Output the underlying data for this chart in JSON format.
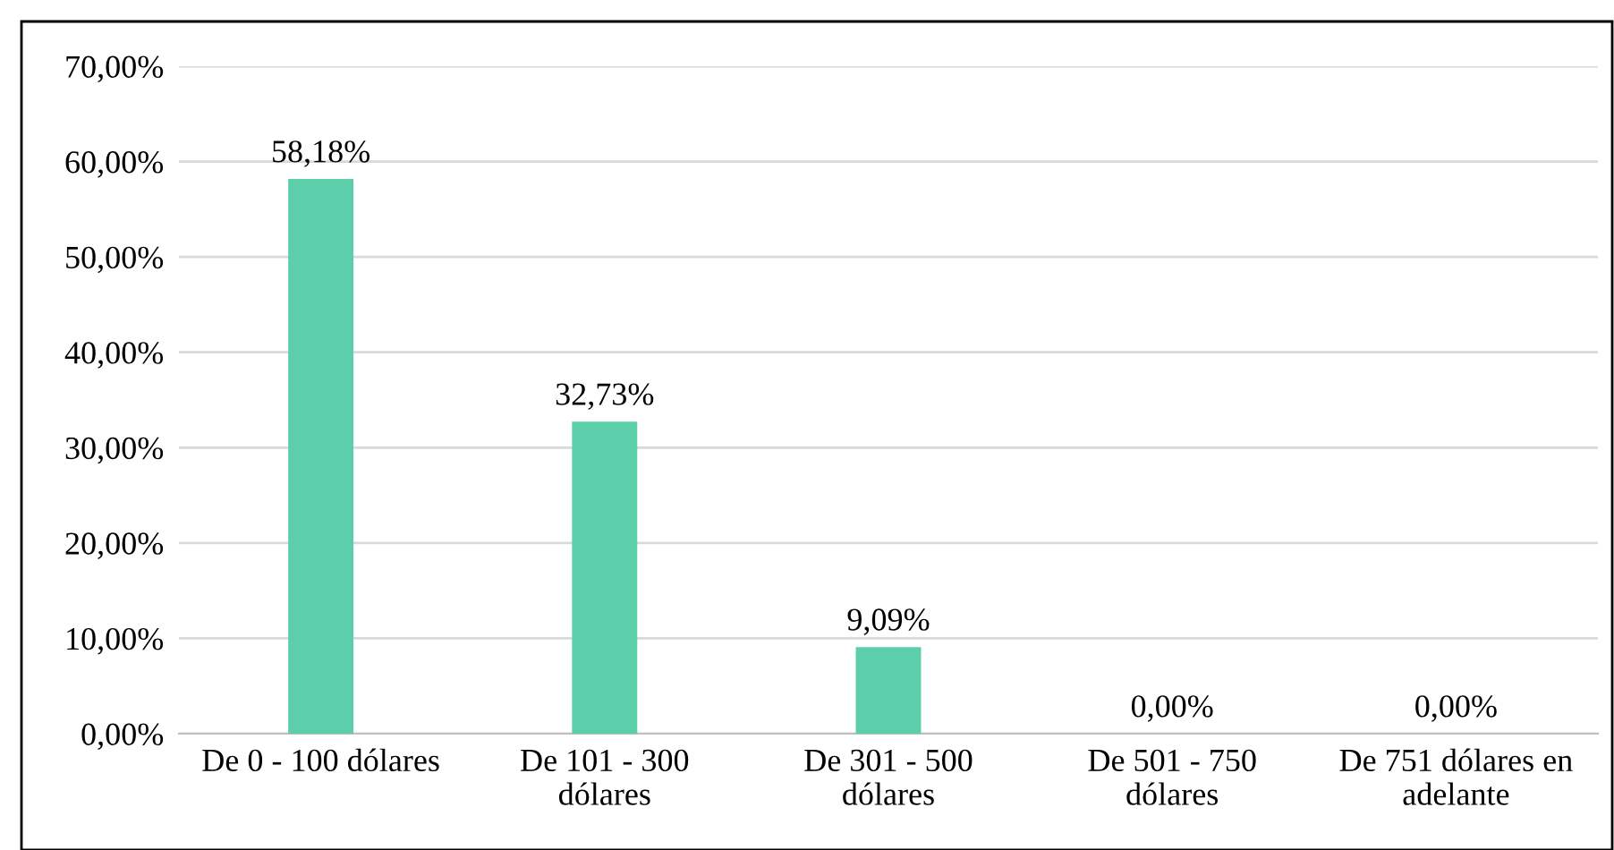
{
  "chart_data": {
    "type": "bar",
    "categories": [
      "De 0 - 100 dólares",
      "De 101 - 300\ndólares",
      "De 301 - 500\ndólares",
      "De 501 - 750\ndólares",
      "De 751 dólares en\nadelante"
    ],
    "values": [
      58.18,
      32.73,
      9.09,
      0,
      0
    ],
    "value_labels": [
      "58,18%",
      "32,73%",
      "9,09%",
      "0,00%",
      "0,00%"
    ],
    "color": "#5ccfaa",
    "ylim": [
      0,
      70
    ],
    "yticks": [
      {
        "value": 0,
        "label": "0,00%"
      },
      {
        "value": 10,
        "label": "10,00%"
      },
      {
        "value": 20,
        "label": "20,00%"
      },
      {
        "value": 30,
        "label": "30,00%"
      },
      {
        "value": 40,
        "label": "40,00%"
      },
      {
        "value": 50,
        "label": "50,00%"
      },
      {
        "value": 60,
        "label": "60,00%"
      },
      {
        "value": 70,
        "label": "70,00%"
      }
    ],
    "grid": "y"
  }
}
